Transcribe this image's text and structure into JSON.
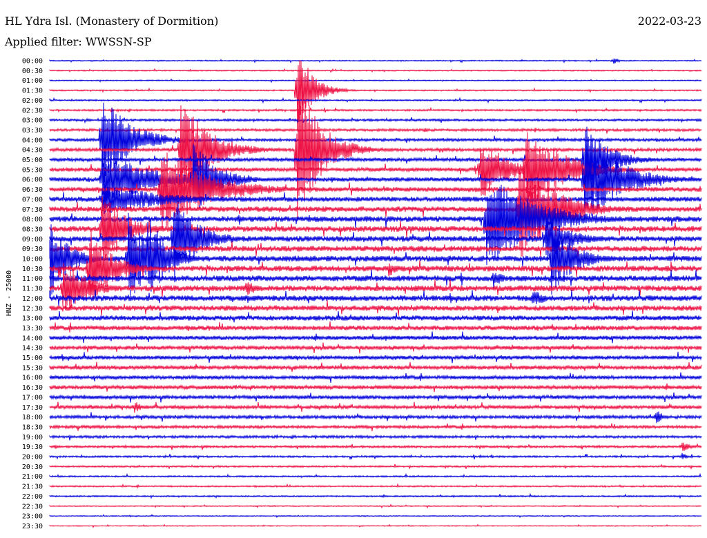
{
  "header": {
    "station": "HL Ydra Isl. (Monastery of Dormition)",
    "date": "2022-03-23",
    "filter": "Applied filter: WWSSN-SP"
  },
  "chart_data": {
    "type": "helicorder",
    "ylabel": "HNZ - 25000",
    "trace_colors": [
      "#0000dd",
      "#ee1144"
    ],
    "rows": [
      "00:00",
      "00:30",
      "01:00",
      "01:30",
      "02:00",
      "02:30",
      "03:00",
      "03:30",
      "04:00",
      "04:30",
      "05:00",
      "05:30",
      "06:00",
      "06:30",
      "07:00",
      "07:30",
      "08:00",
      "08:30",
      "09:00",
      "09:30",
      "10:00",
      "10:30",
      "11:00",
      "11:30",
      "12:00",
      "12:30",
      "13:00",
      "13:30",
      "14:00",
      "14:30",
      "15:00",
      "15:30",
      "16:00",
      "16:30",
      "17:00",
      "17:30",
      "18:00",
      "18:30",
      "19:00",
      "19:30",
      "20:00",
      "20:30",
      "21:00",
      "21:30",
      "22:00",
      "22:30",
      "23:00",
      "23:30"
    ],
    "noise_level": [
      0.6,
      0.6,
      0.6,
      0.7,
      0.8,
      1.0,
      1.2,
      1.4,
      1.6,
      1.8,
      2.0,
      2.2,
      2.4,
      2.6,
      2.8,
      3.0,
      3.2,
      3.2,
      3.2,
      3.2,
      3.3,
      3.3,
      3.3,
      3.3,
      3.2,
      3.0,
      2.8,
      2.6,
      2.4,
      2.2,
      2.2,
      2.2,
      2.0,
      2.2,
      2.0,
      2.0,
      1.8,
      1.6,
      1.4,
      1.2,
      1.0,
      0.9,
      0.8,
      0.8,
      0.8,
      0.6,
      0.5,
      0.5
    ],
    "events": [
      {
        "row": 0,
        "x": 0.865,
        "amp": 6,
        "dur": 0.02
      },
      {
        "row": 3,
        "x": 0.38,
        "amp": 75,
        "dur": 0.06
      },
      {
        "row": 7,
        "x": 0.575,
        "amp": 4,
        "dur": 0.02
      },
      {
        "row": 8,
        "x": 0.08,
        "amp": 70,
        "dur": 0.12
      },
      {
        "row": 9,
        "x": 0.2,
        "amp": 80,
        "dur": 0.12
      },
      {
        "row": 9,
        "x": 0.38,
        "amp": 110,
        "dur": 0.1
      },
      {
        "row": 10,
        "x": 0.82,
        "amp": 60,
        "dur": 0.1
      },
      {
        "row": 11,
        "x": 0.66,
        "amp": 55,
        "dur": 0.1
      },
      {
        "row": 11,
        "x": 0.73,
        "amp": 70,
        "dur": 0.15
      },
      {
        "row": 12,
        "x": 0.08,
        "amp": 45,
        "dur": 0.2
      },
      {
        "row": 12,
        "x": 0.22,
        "amp": 60,
        "dur": 0.1
      },
      {
        "row": 12,
        "x": 0.82,
        "amp": 70,
        "dur": 0.15
      },
      {
        "row": 13,
        "x": 0.17,
        "amp": 65,
        "dur": 0.2
      },
      {
        "row": 14,
        "x": 0.08,
        "amp": 25,
        "dur": 0.25
      },
      {
        "row": 15,
        "x": 0.72,
        "amp": 80,
        "dur": 0.15
      },
      {
        "row": 16,
        "x": 0.67,
        "amp": 75,
        "dur": 0.2
      },
      {
        "row": 17,
        "x": 0.08,
        "amp": 60,
        "dur": 0.1
      },
      {
        "row": 18,
        "x": 0.19,
        "amp": 70,
        "dur": 0.1
      },
      {
        "row": 18,
        "x": 0.76,
        "amp": 40,
        "dur": 0.1
      },
      {
        "row": 20,
        "x": 0.0,
        "amp": 60,
        "dur": 0.08
      },
      {
        "row": 20,
        "x": 0.12,
        "amp": 70,
        "dur": 0.1
      },
      {
        "row": 20,
        "x": 0.15,
        "amp": 70,
        "dur": 0.08
      },
      {
        "row": 20,
        "x": 0.77,
        "amp": 55,
        "dur": 0.1
      },
      {
        "row": 21,
        "x": 0.06,
        "amp": 60,
        "dur": 0.1
      },
      {
        "row": 21,
        "x": 0.52,
        "amp": 12,
        "dur": 0.04
      },
      {
        "row": 22,
        "x": 0.68,
        "amp": 16,
        "dur": 0.04
      },
      {
        "row": 23,
        "x": 0.02,
        "amp": 45,
        "dur": 0.1
      },
      {
        "row": 23,
        "x": 0.3,
        "amp": 14,
        "dur": 0.06
      },
      {
        "row": 24,
        "x": 0.74,
        "amp": 14,
        "dur": 0.06
      },
      {
        "row": 35,
        "x": 0.13,
        "amp": 10,
        "dur": 0.03
      },
      {
        "row": 36,
        "x": 0.93,
        "amp": 12,
        "dur": 0.03
      },
      {
        "row": 39,
        "x": 0.97,
        "amp": 10,
        "dur": 0.03
      },
      {
        "row": 40,
        "x": 0.97,
        "amp": 6,
        "dur": 0.02
      }
    ]
  }
}
